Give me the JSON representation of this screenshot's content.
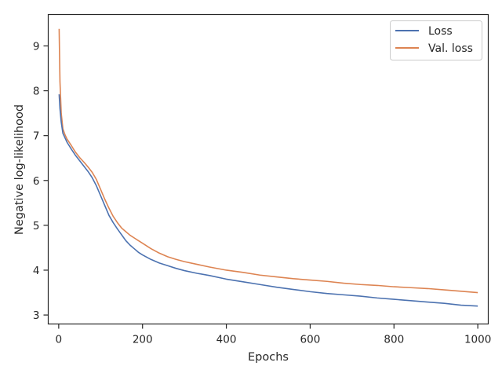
{
  "chart_data": {
    "type": "line",
    "xlabel": "Epochs",
    "ylabel": "Negative log-likelihood",
    "xlim": [
      -25,
      1025
    ],
    "ylim": [
      2.8,
      9.7
    ],
    "xticks": [
      0,
      200,
      400,
      600,
      800,
      1000
    ],
    "yticks": [
      3,
      4,
      5,
      6,
      7,
      8,
      9
    ],
    "grid": false,
    "legend_position": "top-right",
    "series": [
      {
        "name": "Loss",
        "color": "#4c72b0",
        "x": [
          1,
          3,
          6,
          10,
          15,
          20,
          30,
          40,
          50,
          60,
          70,
          80,
          90,
          100,
          110,
          120,
          130,
          140,
          150,
          160,
          170,
          180,
          190,
          200,
          220,
          240,
          260,
          280,
          300,
          330,
          360,
          400,
          440,
          480,
          520,
          560,
          600,
          640,
          680,
          720,
          760,
          800,
          840,
          880,
          920,
          960,
          1000
        ],
        "y": [
          7.92,
          7.6,
          7.3,
          7.05,
          6.95,
          6.85,
          6.7,
          6.56,
          6.44,
          6.32,
          6.2,
          6.06,
          5.88,
          5.66,
          5.44,
          5.22,
          5.06,
          4.92,
          4.79,
          4.66,
          4.56,
          4.48,
          4.4,
          4.34,
          4.24,
          4.16,
          4.1,
          4.04,
          3.99,
          3.93,
          3.88,
          3.8,
          3.74,
          3.68,
          3.62,
          3.57,
          3.52,
          3.48,
          3.45,
          3.42,
          3.38,
          3.35,
          3.32,
          3.29,
          3.26,
          3.22,
          3.2
        ]
      },
      {
        "name": "Val. loss",
        "color": "#dd8452",
        "x": [
          1,
          3,
          6,
          10,
          15,
          20,
          30,
          40,
          50,
          60,
          70,
          80,
          90,
          100,
          110,
          120,
          130,
          140,
          150,
          160,
          170,
          180,
          190,
          200,
          220,
          240,
          260,
          280,
          300,
          330,
          360,
          400,
          440,
          480,
          520,
          560,
          600,
          640,
          680,
          720,
          760,
          800,
          840,
          880,
          920,
          960,
          1000
        ],
        "y": [
          9.38,
          8.2,
          7.5,
          7.15,
          7.02,
          6.92,
          6.78,
          6.63,
          6.51,
          6.41,
          6.3,
          6.18,
          6.02,
          5.8,
          5.58,
          5.38,
          5.2,
          5.06,
          4.94,
          4.86,
          4.78,
          4.72,
          4.66,
          4.6,
          4.48,
          4.38,
          4.3,
          4.24,
          4.19,
          4.13,
          4.07,
          4.0,
          3.95,
          3.89,
          3.85,
          3.81,
          3.78,
          3.75,
          3.71,
          3.68,
          3.66,
          3.63,
          3.61,
          3.59,
          3.56,
          3.53,
          3.5
        ]
      }
    ]
  }
}
